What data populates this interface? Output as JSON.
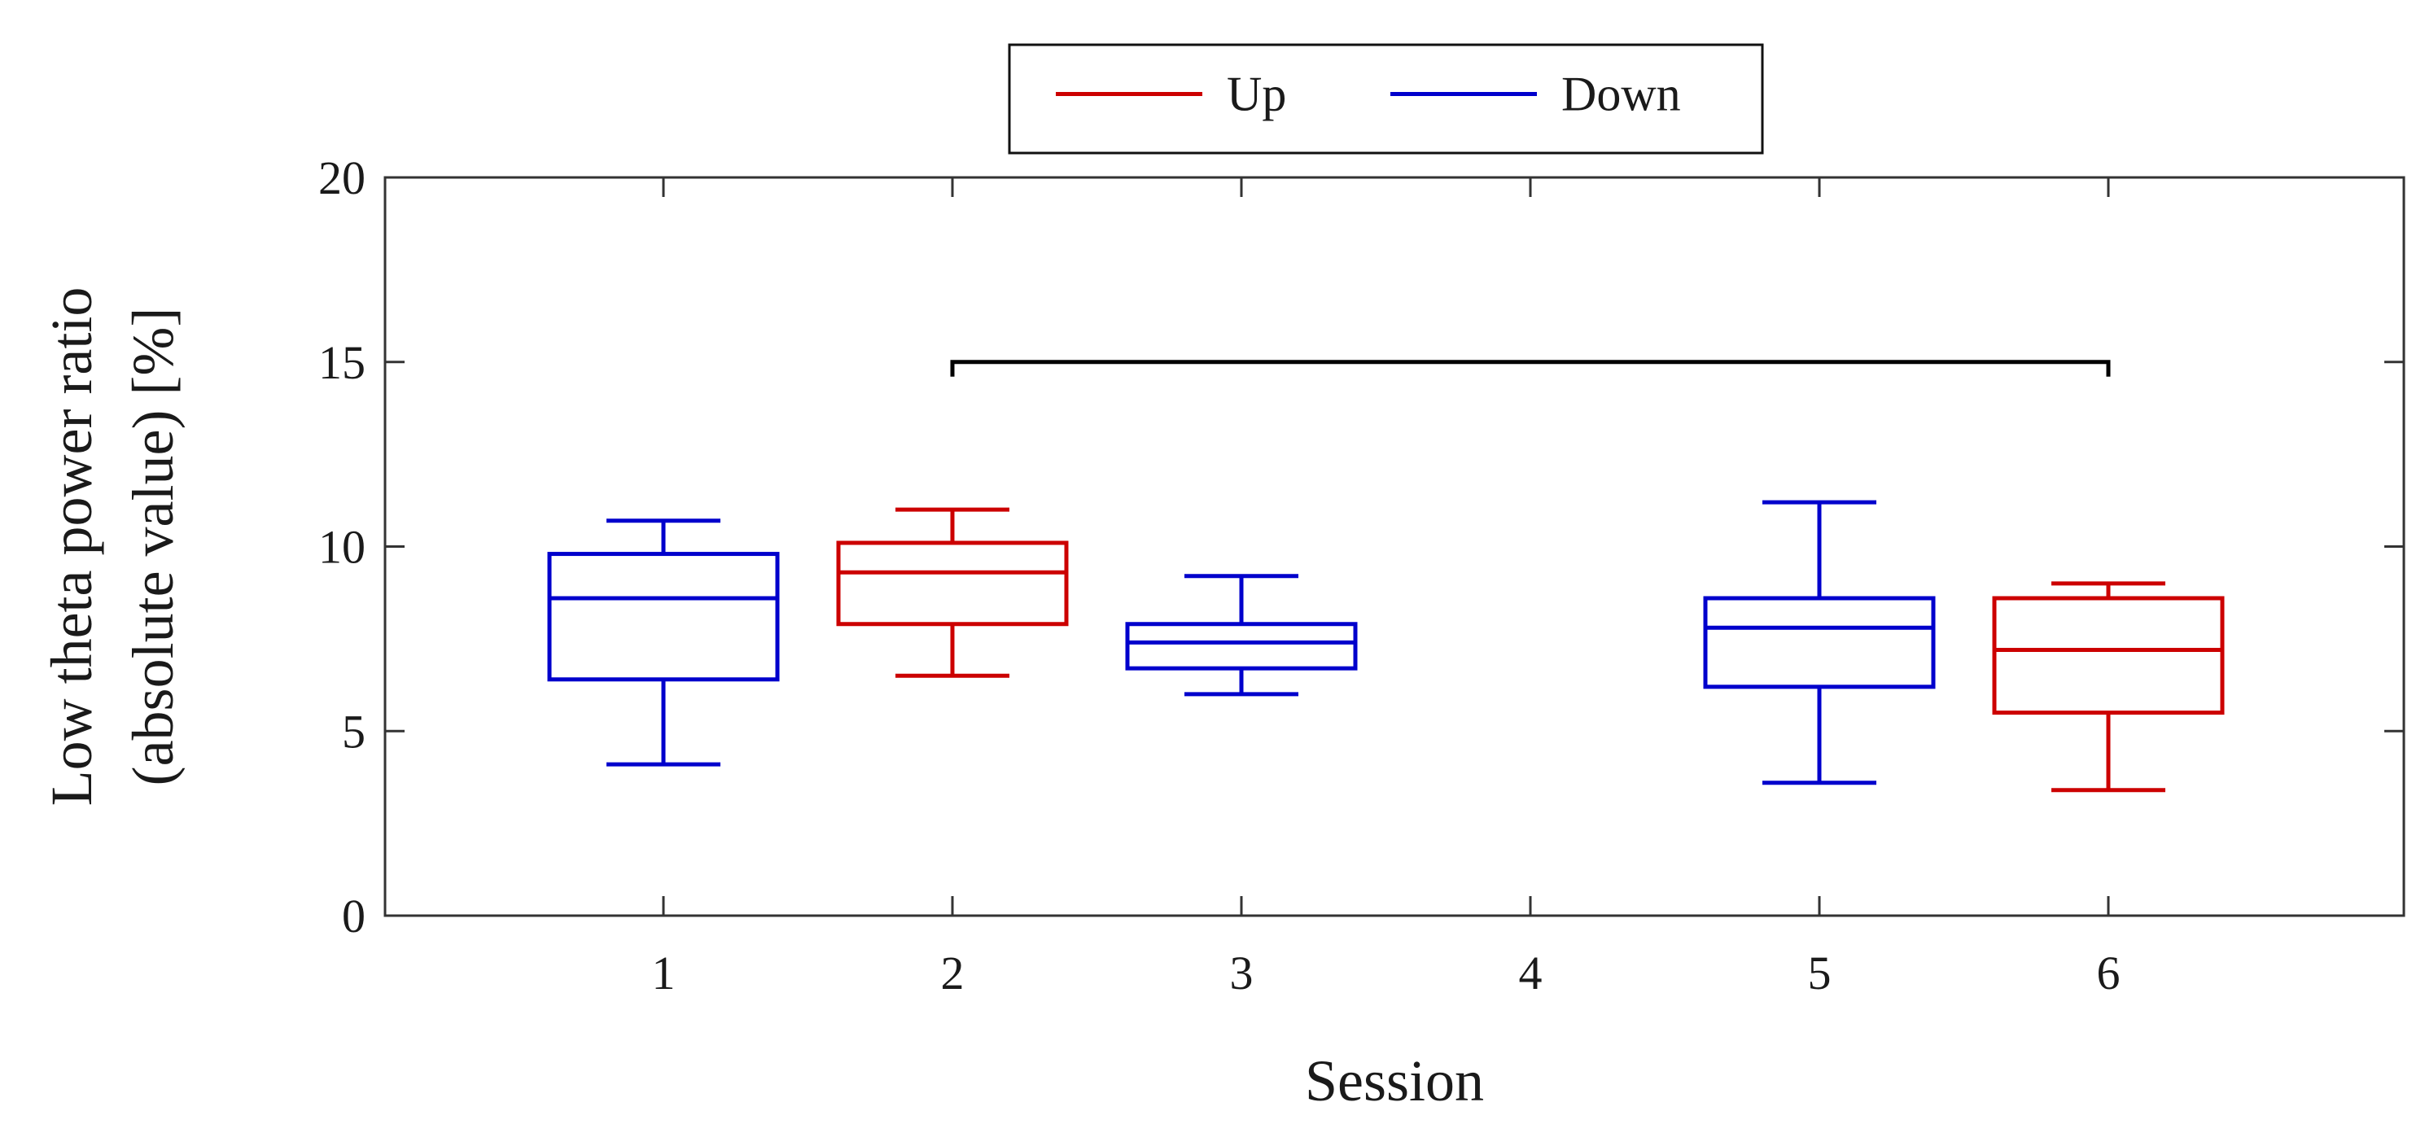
{
  "chart_data": {
    "type": "boxplot",
    "xlabel": "Session",
    "ylabel_lines": [
      "Low theta power ratio",
      "(absolute value) [%]"
    ],
    "ylim": [
      0,
      20
    ],
    "yticks": [
      0,
      5,
      10,
      15,
      20
    ],
    "categories": [
      "1",
      "2",
      "3",
      "4",
      "5",
      "6"
    ],
    "legend": {
      "position": "top-center",
      "entries": [
        {
          "label": "Up",
          "color": "#cc0000"
        },
        {
          "label": "Down",
          "color": "#0000cc"
        }
      ]
    },
    "boxes": [
      {
        "session": "1",
        "group": "Down",
        "min": 4.1,
        "q1": 6.4,
        "median": 8.6,
        "q3": 9.8,
        "max": 10.7
      },
      {
        "session": "2",
        "group": "Up",
        "min": 6.5,
        "q1": 7.9,
        "median": 9.3,
        "q3": 10.1,
        "max": 11.0
      },
      {
        "session": "3",
        "group": "Down",
        "min": 6.0,
        "q1": 6.7,
        "median": 7.4,
        "q3": 7.9,
        "max": 9.2
      },
      {
        "session": "5",
        "group": "Down",
        "min": 3.6,
        "q1": 6.2,
        "median": 7.8,
        "q3": 8.6,
        "max": 11.2
      },
      {
        "session": "6",
        "group": "Up",
        "min": 3.4,
        "q1": 5.5,
        "median": 7.2,
        "q3": 8.6,
        "max": 9.0
      }
    ],
    "significance_bracket": {
      "from": "2",
      "to": "6",
      "y": 15
    },
    "grid": false
  }
}
